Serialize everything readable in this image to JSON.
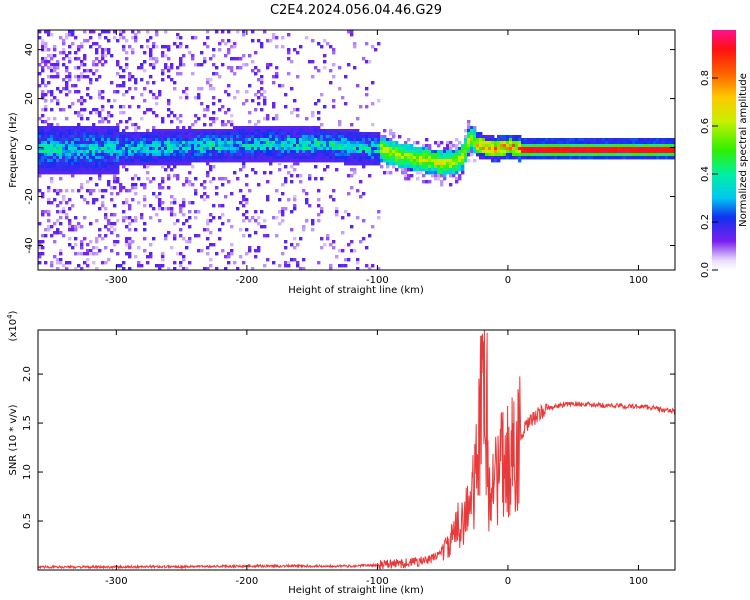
{
  "title": "C2E4.2024.056.04.46.G29",
  "chart_data": [
    {
      "type": "heatmap",
      "xlabel": "Height of straight line (km)",
      "ylabel": "Frequency (Hz)",
      "xlim": [
        -360,
        128
      ],
      "ylim": [
        -50,
        48
      ],
      "xticks": [
        -300,
        -200,
        -100,
        0,
        100
      ],
      "yticks": [
        -40,
        -20,
        0,
        20,
        40
      ],
      "colorbar": {
        "label": "Normalized spectral amplitude",
        "ticks": [
          "0.0",
          "0.2",
          "0.4",
          "0.6",
          "0.8"
        ],
        "tick_values": [
          0.0,
          0.2,
          0.4,
          0.6,
          0.8
        ],
        "range": [
          0,
          1
        ]
      },
      "ridge": {
        "x": [
          -330,
          -300,
          -250,
          -200,
          -150,
          -100,
          -80,
          -60,
          -50,
          -40,
          -35,
          -30,
          -25,
          -20,
          -10,
          0,
          10,
          50,
          100,
          128
        ],
        "y": [
          0,
          0,
          1,
          2,
          2,
          0,
          -3,
          -5,
          -6,
          -5,
          -3,
          5,
          2,
          1,
          0,
          1,
          0,
          0,
          0,
          0
        ]
      },
      "grid": false
    },
    {
      "type": "line",
      "xlabel": "Height of straight line (km)",
      "ylabel": "SNR (10 * v/v)",
      "scale_label": "(x10^4)",
      "xlim": [
        -360,
        128
      ],
      "ylim": [
        0,
        2.45
      ],
      "xticks": [
        -300,
        -200,
        -100,
        0,
        100
      ],
      "yticks": [
        "0.5",
        "1.0",
        "1.5",
        "2.0"
      ],
      "ytick_values": [
        0.5,
        1.0,
        1.5,
        2.0
      ],
      "color": "#e83a3a",
      "series": [
        {
          "x": [
            -360,
            -300,
            -200,
            -120,
            -100,
            -80,
            -60,
            -45,
            -40,
            -35,
            -30,
            -25,
            -22,
            -20,
            -18,
            -15,
            -12,
            -10,
            -5,
            0,
            5,
            10,
            15,
            20,
            25,
            30,
            40,
            50,
            60,
            70,
            80,
            90,
            100,
            110,
            120,
            128
          ],
          "y": [
            0.03,
            0.03,
            0.04,
            0.04,
            0.05,
            0.07,
            0.1,
            0.25,
            0.4,
            0.55,
            0.6,
            0.9,
            1.3,
            2.4,
            1.9,
            0.8,
            1.0,
            0.9,
            1.05,
            1.1,
            1.2,
            1.35,
            1.48,
            1.55,
            1.6,
            1.65,
            1.68,
            1.7,
            1.69,
            1.68,
            1.68,
            1.67,
            1.67,
            1.66,
            1.63,
            1.62
          ]
        }
      ],
      "grid": false
    }
  ]
}
